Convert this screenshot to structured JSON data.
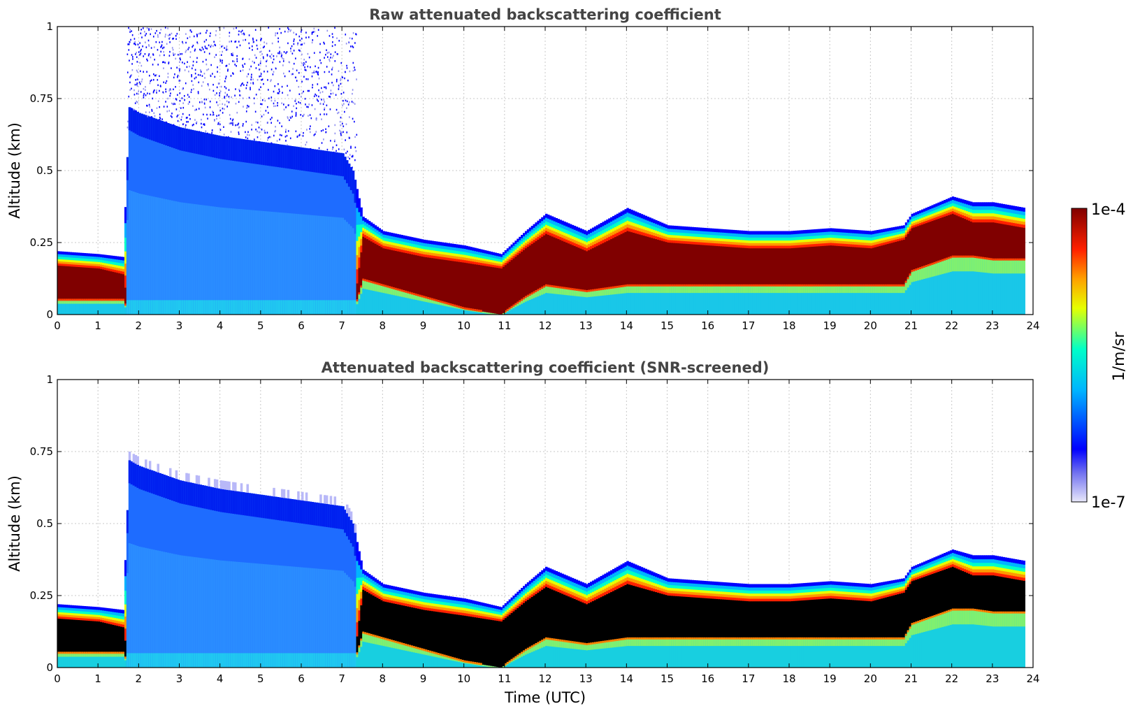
{
  "chart_data": [
    {
      "type": "heatmap",
      "title": "Raw attenuated backscattering coefficient",
      "xlabel": "",
      "ylabel": "Altitude (km)",
      "xlim": [
        0,
        24
      ],
      "ylim": [
        0,
        1
      ],
      "xticks": [
        "0",
        "1",
        "2",
        "3",
        "4",
        "5",
        "6",
        "7",
        "8",
        "9",
        "10",
        "11",
        "12",
        "13",
        "14",
        "15",
        "16",
        "17",
        "18",
        "19",
        "20",
        "21",
        "22",
        "23",
        "24"
      ],
      "yticks": [
        "0",
        "0.25",
        "0.5",
        "0.75",
        "1"
      ],
      "grid": true,
      "layer": {
        "time_utc": [
          0.0,
          1.0,
          1.6,
          1.75,
          2.0,
          3.0,
          4.0,
          5.0,
          6.0,
          7.0,
          7.25,
          7.5,
          8.0,
          9.0,
          10.0,
          10.9,
          11.5,
          12.0,
          13.0,
          14.0,
          15.0,
          16.0,
          17.0,
          18.0,
          19.0,
          20.0,
          20.8,
          21.0,
          22.0,
          22.5,
          23.0,
          23.8
        ],
        "top_km": [
          0.22,
          0.21,
          0.2,
          0.72,
          0.7,
          0.65,
          0.62,
          0.6,
          0.58,
          0.56,
          0.5,
          0.34,
          0.29,
          0.26,
          0.24,
          0.21,
          0.29,
          0.35,
          0.29,
          0.37,
          0.31,
          0.3,
          0.29,
          0.29,
          0.3,
          0.29,
          0.31,
          0.35,
          0.41,
          0.39,
          0.39,
          0.37
        ],
        "dense_top_km": [
          0.17,
          0.16,
          0.14,
          0.0,
          0.0,
          0.0,
          0.0,
          0.0,
          0.0,
          0.0,
          0.0,
          0.27,
          0.23,
          0.2,
          0.18,
          0.16,
          0.23,
          0.28,
          0.22,
          0.29,
          0.25,
          0.24,
          0.23,
          0.23,
          0.24,
          0.23,
          0.26,
          0.3,
          0.35,
          0.32,
          0.32,
          0.3
        ],
        "dense_base_km": [
          0.05,
          0.05,
          0.05,
          0.0,
          0.0,
          0.0,
          0.0,
          0.0,
          0.0,
          0.0,
          0.0,
          0.12,
          0.1,
          0.06,
          0.02,
          0.0,
          0.06,
          0.1,
          0.08,
          0.1,
          0.1,
          0.1,
          0.1,
          0.1,
          0.1,
          0.1,
          0.1,
          0.15,
          0.2,
          0.2,
          0.19,
          0.19
        ]
      },
      "high_speckle_interval_utc": [
        1.7,
        7.3
      ]
    },
    {
      "type": "heatmap",
      "title": "Attenuated backscattering coefficient (SNR-screened)",
      "xlabel": "Time (UTC)",
      "ylabel": "Altitude (km)",
      "xlim": [
        0,
        24
      ],
      "ylim": [
        0,
        1
      ],
      "xticks": [
        "0",
        "1",
        "2",
        "3",
        "4",
        "5",
        "6",
        "7",
        "8",
        "9",
        "10",
        "11",
        "12",
        "13",
        "14",
        "15",
        "16",
        "17",
        "18",
        "19",
        "20",
        "21",
        "22",
        "23",
        "24"
      ],
      "yticks": [
        "0",
        "0.25",
        "0.5",
        "0.75",
        "1"
      ],
      "grid": true,
      "dense_core_color": "#000000"
    }
  ],
  "colorbar": {
    "max_label": "1e-4",
    "min_label": "1e-7",
    "unit_label": "1/m/sr",
    "colormap": [
      "#e8e8fa",
      "#0000ff",
      "#00c8ff",
      "#00ffc0",
      "#ffff00",
      "#ff8000",
      "#ff0000",
      "#800000"
    ]
  }
}
